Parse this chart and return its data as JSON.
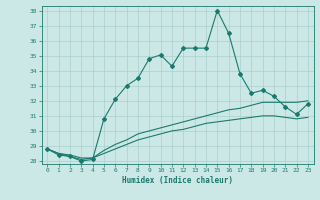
{
  "xlabel": "Humidex (Indice chaleur)",
  "bg_color": "#cce8e6",
  "grid_color": "#aacfcd",
  "line_color": "#1a7a6e",
  "xlim": [
    -0.5,
    23.5
  ],
  "ylim": [
    27.8,
    38.3
  ],
  "yticks": [
    28,
    29,
    30,
    31,
    32,
    33,
    34,
    35,
    36,
    37,
    38
  ],
  "xticks": [
    0,
    1,
    2,
    3,
    4,
    5,
    6,
    7,
    8,
    9,
    10,
    11,
    12,
    13,
    14,
    15,
    16,
    17,
    18,
    19,
    20,
    21,
    22,
    23
  ],
  "series1_x": [
    0,
    1,
    2,
    3,
    4,
    5,
    6,
    7,
    8,
    9,
    10,
    11,
    12,
    13,
    14,
    15,
    16,
    17,
    18,
    19,
    20,
    21,
    22,
    23
  ],
  "series1_y": [
    28.8,
    28.4,
    28.3,
    28.0,
    28.1,
    30.8,
    32.1,
    33.0,
    33.5,
    34.8,
    35.05,
    34.3,
    35.5,
    35.5,
    35.5,
    38.0,
    36.5,
    33.8,
    32.5,
    32.7,
    32.3,
    31.6,
    31.1,
    31.8
  ],
  "series2_x": [
    0,
    1,
    2,
    3,
    4,
    5,
    6,
    7,
    8,
    9,
    10,
    11,
    12,
    13,
    14,
    15,
    16,
    17,
    18,
    19,
    20,
    21,
    22,
    23
  ],
  "series2_y": [
    28.8,
    28.5,
    28.4,
    28.2,
    28.2,
    28.7,
    29.1,
    29.4,
    29.8,
    30.0,
    30.2,
    30.4,
    30.6,
    30.8,
    31.0,
    31.2,
    31.4,
    31.5,
    31.7,
    31.9,
    31.9,
    31.9,
    31.9,
    32.0
  ],
  "series3_x": [
    0,
    1,
    2,
    3,
    4,
    5,
    6,
    7,
    8,
    9,
    10,
    11,
    12,
    13,
    14,
    15,
    16,
    17,
    18,
    19,
    20,
    21,
    22,
    23
  ],
  "series3_y": [
    28.8,
    28.5,
    28.3,
    28.1,
    28.2,
    28.5,
    28.8,
    29.1,
    29.4,
    29.6,
    29.8,
    30.0,
    30.1,
    30.3,
    30.5,
    30.6,
    30.7,
    30.8,
    30.9,
    31.0,
    31.0,
    30.9,
    30.8,
    30.9
  ]
}
